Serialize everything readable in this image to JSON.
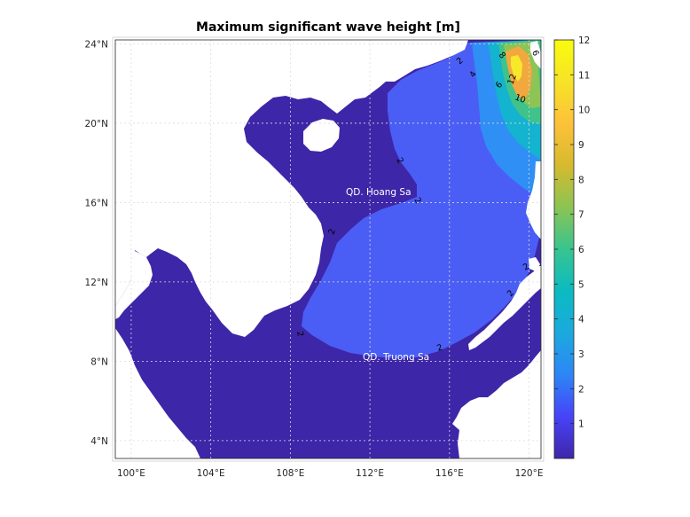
{
  "chart_data": {
    "type": "heatmap",
    "title": "Maximum significant wave height [m]",
    "x_ticks": [
      "100°E",
      "104°E",
      "108°E",
      "112°E",
      "116°E",
      "120°E"
    ],
    "x_tick_values": [
      100,
      104,
      108,
      112,
      116,
      120
    ],
    "y_ticks": [
      "24°N",
      "20°N",
      "16°N",
      "12°N",
      "8°N",
      "4°N"
    ],
    "y_tick_values": [
      24,
      20,
      16,
      12,
      8,
      4
    ],
    "xlim": [
      99.2,
      120.6
    ],
    "ylim": [
      3.1,
      24.2
    ],
    "colorbar": {
      "ticks": [
        "12",
        "11",
        "10",
        "9",
        "8",
        "7",
        "6",
        "5",
        "4",
        "3",
        "2",
        "1"
      ],
      "tick_values": [
        12,
        11,
        10,
        9,
        8,
        7,
        6,
        5,
        4,
        3,
        2,
        1
      ],
      "range": [
        0,
        12
      ],
      "colormap": "parula",
      "stops": [
        "#3e26a8",
        "#4743f8",
        "#2d86f6",
        "#1ca9de",
        "#0bbbc0",
        "#38c48f",
        "#8bc453",
        "#d6ba2e",
        "#fdc13a",
        "#f6e327",
        "#f9fb0e"
      ]
    },
    "annotations": [
      "QD. Hoang Sa",
      "QD. Truong Sa"
    ],
    "contour_labels": [
      "2",
      "2",
      "2",
      "2",
      "2",
      "2",
      "2",
      "2",
      "4",
      "6",
      "8",
      "10",
      "12",
      "6"
    ],
    "grid": true
  },
  "colors": {
    "land": "#ffffff",
    "wave_1": "#3e26a8",
    "wave_2": "#4a5ef5",
    "wave_4": "#2f8ff4",
    "wave_6": "#14b3cf",
    "wave_7": "#3fc38a",
    "wave_8": "#8ec455",
    "wave_10": "#f3a83f",
    "wave_12": "#f8e82a"
  }
}
